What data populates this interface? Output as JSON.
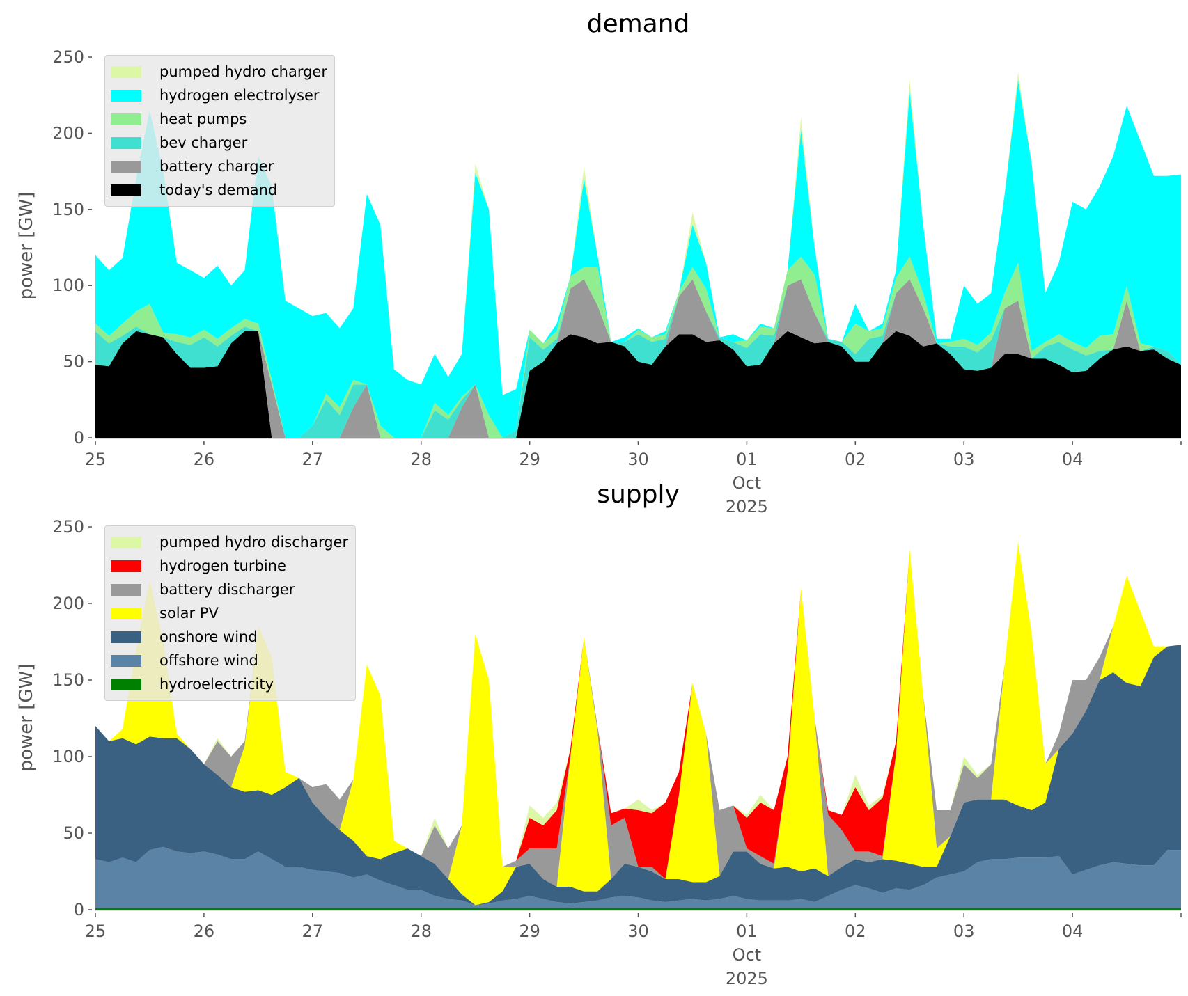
{
  "chart_data": [
    {
      "type": "area",
      "stacked": true,
      "title": "demand",
      "ylabel": "power [GW]",
      "xlabel": "",
      "ylim": [
        0,
        250
      ],
      "yticks": [
        0,
        50,
        100,
        150,
        200,
        250
      ],
      "x_start": "2025-09-25 00:00",
      "x_step_hours": 3,
      "xtick_labels": [
        "25",
        "26",
        "27",
        "28",
        "29",
        "30",
        "01",
        "02",
        "03",
        "04"
      ],
      "xtick_sublabel": {
        "tick": "01",
        "month": "Oct",
        "year": "2025"
      },
      "legend_position": "upper-left",
      "series": [
        {
          "name": "today's demand",
          "color": "#000000",
          "values": [
            48,
            47,
            62,
            70,
            68,
            66,
            55,
            46,
            46,
            47,
            62,
            70,
            70,
            0,
            0,
            0,
            0,
            0,
            0,
            0,
            0,
            0,
            0,
            0,
            0,
            0,
            0,
            0,
            0,
            0,
            0,
            0,
            44,
            50,
            62,
            68,
            66,
            62,
            63,
            60,
            50,
            48,
            60,
            68,
            68,
            63,
            64,
            58,
            47,
            48,
            62,
            70,
            66,
            62,
            63,
            60,
            50,
            50,
            62,
            70,
            67,
            60,
            62,
            55,
            45,
            44,
            46,
            55,
            55,
            52,
            52,
            48,
            43,
            44,
            52,
            58,
            60,
            57,
            58,
            52,
            48
          ]
        },
        {
          "name": "battery charger",
          "color": "#999999",
          "values": [
            0,
            0,
            0,
            0,
            0,
            0,
            0,
            0,
            0,
            0,
            0,
            0,
            0,
            35,
            0,
            0,
            0,
            0,
            0,
            20,
            35,
            0,
            0,
            0,
            0,
            0,
            0,
            20,
            35,
            0,
            0,
            0,
            0,
            0,
            0,
            30,
            38,
            25,
            0,
            0,
            0,
            0,
            0,
            25,
            36,
            20,
            0,
            0,
            0,
            0,
            0,
            30,
            38,
            20,
            0,
            0,
            0,
            0,
            0,
            25,
            37,
            25,
            0,
            0,
            0,
            0,
            0,
            30,
            35,
            0,
            0,
            0,
            0,
            0,
            0,
            0,
            30,
            0,
            0,
            0,
            0
          ]
        },
        {
          "name": "bev charger",
          "color": "#40e0d0",
          "values": [
            22,
            15,
            5,
            3,
            0,
            0,
            8,
            15,
            20,
            13,
            5,
            3,
            0,
            0,
            0,
            0,
            8,
            25,
            15,
            15,
            0,
            0,
            0,
            0,
            0,
            18,
            12,
            5,
            0,
            0,
            0,
            5,
            22,
            8,
            3,
            0,
            0,
            0,
            0,
            3,
            18,
            15,
            5,
            0,
            0,
            0,
            2,
            5,
            12,
            20,
            5,
            0,
            0,
            0,
            2,
            3,
            5,
            15,
            5,
            0,
            0,
            0,
            0,
            5,
            15,
            12,
            18,
            0,
            0,
            0,
            8,
            15,
            15,
            10,
            5,
            0,
            0,
            0,
            2,
            5,
            0
          ]
        },
        {
          "name": "heat pumps",
          "color": "#90ee90",
          "values": [
            5,
            5,
            8,
            10,
            20,
            3,
            5,
            5,
            5,
            5,
            5,
            5,
            5,
            3,
            0,
            0,
            0,
            4,
            5,
            3,
            0,
            8,
            0,
            0,
            0,
            5,
            3,
            2,
            0,
            15,
            0,
            0,
            5,
            4,
            5,
            8,
            8,
            25,
            0,
            0,
            3,
            3,
            3,
            3,
            8,
            15,
            0,
            0,
            5,
            5,
            5,
            10,
            15,
            25,
            0,
            0,
            20,
            5,
            5,
            10,
            15,
            10,
            0,
            3,
            5,
            5,
            5,
            10,
            25,
            5,
            3,
            5,
            5,
            5,
            10,
            10,
            10,
            5,
            0,
            0,
            0
          ]
        },
        {
          "name": "hydrogen electrolyser",
          "color": "#00ffff",
          "values": [
            45,
            43,
            43,
            87,
            127,
            106,
            47,
            44,
            34,
            48,
            28,
            32,
            110,
            127,
            90,
            85,
            72,
            53,
            52,
            47,
            125,
            132,
            45,
            38,
            35,
            32,
            25,
            28,
            139,
            135,
            28,
            27,
            0,
            0,
            5,
            0,
            58,
            8,
            0,
            3,
            1,
            0,
            2,
            0,
            28,
            17,
            0,
            5,
            0,
            2,
            0,
            0,
            83,
            18,
            0,
            0,
            13,
            0,
            3,
            5,
            108,
            45,
            3,
            2,
            35,
            27,
            26,
            65,
            120,
            123,
            32,
            47,
            92,
            91,
            98,
            117,
            118,
            133,
            112,
            115,
            125
          ]
        },
        {
          "name": "pumped hydro charger",
          "color": "#dcf7a6",
          "values": [
            0,
            0,
            0,
            0,
            0,
            0,
            0,
            0,
            0,
            0,
            0,
            0,
            0,
            0,
            0,
            0,
            0,
            0,
            0,
            0,
            0,
            0,
            0,
            0,
            0,
            0,
            0,
            0,
            6,
            0,
            0,
            0,
            0,
            0,
            0,
            0,
            8,
            0,
            0,
            0,
            0,
            0,
            0,
            0,
            8,
            0,
            0,
            0,
            0,
            0,
            0,
            0,
            8,
            0,
            0,
            0,
            0,
            0,
            0,
            0,
            8,
            0,
            0,
            0,
            0,
            0,
            0,
            0,
            5,
            0,
            0,
            0,
            0,
            0,
            0,
            0,
            0,
            0,
            0,
            0,
            0
          ]
        }
      ]
    },
    {
      "type": "area",
      "stacked": true,
      "title": "supply",
      "ylabel": "power [GW]",
      "xlabel": "",
      "ylim": [
        0,
        250
      ],
      "yticks": [
        0,
        50,
        100,
        150,
        200,
        250
      ],
      "x_start": "2025-09-25 00:00",
      "x_step_hours": 3,
      "xtick_labels": [
        "25",
        "26",
        "27",
        "28",
        "29",
        "30",
        "01",
        "02",
        "03",
        "04"
      ],
      "xtick_sublabel": {
        "tick": "01",
        "month": "Oct",
        "year": "2025"
      },
      "legend_position": "upper-left",
      "series": [
        {
          "name": "hydroelectricity",
          "color": "#008000",
          "values": [
            1,
            1,
            1,
            1,
            1,
            1,
            1,
            1,
            1,
            1,
            1,
            1,
            1,
            1,
            1,
            1,
            1,
            1,
            1,
            1,
            1,
            1,
            1,
            1,
            1,
            1,
            1,
            1,
            1,
            1,
            1,
            1,
            1,
            1,
            1,
            1,
            1,
            1,
            1,
            1,
            1,
            1,
            1,
            1,
            1,
            1,
            1,
            1,
            1,
            1,
            1,
            1,
            1,
            1,
            1,
            1,
            1,
            1,
            1,
            1,
            1,
            1,
            1,
            1,
            1,
            1,
            1,
            1,
            1,
            1,
            1,
            1,
            1,
            1,
            1,
            1,
            1,
            1,
            1,
            1,
            1
          ]
        },
        {
          "name": "offshore wind",
          "color": "#5b83a6",
          "values": [
            32,
            30,
            33,
            30,
            38,
            40,
            37,
            36,
            37,
            35,
            32,
            32,
            37,
            32,
            27,
            27,
            25,
            24,
            23,
            20,
            22,
            18,
            15,
            12,
            12,
            8,
            6,
            5,
            2,
            3,
            5,
            6,
            8,
            6,
            4,
            3,
            4,
            5,
            7,
            8,
            7,
            5,
            4,
            5,
            6,
            5,
            6,
            8,
            6,
            5,
            5,
            5,
            6,
            4,
            8,
            12,
            15,
            13,
            10,
            13,
            12,
            15,
            20,
            22,
            24,
            30,
            32,
            32,
            33,
            33,
            33,
            34,
            22,
            25,
            28,
            30,
            29,
            28,
            28,
            38,
            38
          ]
        },
        {
          "name": "onshore wind",
          "color": "#3b6182",
          "values": [
            87,
            79,
            78,
            77,
            74,
            71,
            74,
            68,
            57,
            52,
            47,
            44,
            40,
            42,
            52,
            58,
            44,
            35,
            28,
            24,
            12,
            14,
            21,
            27,
            22,
            21,
            13,
            4,
            0,
            1,
            6,
            21,
            21,
            13,
            10,
            11,
            7,
            6,
            12,
            21,
            20,
            19,
            15,
            14,
            11,
            12,
            15,
            29,
            31,
            24,
            21,
            22,
            18,
            22,
            13,
            15,
            17,
            17,
            22,
            18,
            17,
            12,
            7,
            25,
            45,
            41,
            39,
            39,
            34,
            31,
            36,
            70,
            92,
            104,
            121,
            124,
            118,
            117,
            136,
            133,
            134
          ]
        },
        {
          "name": "solar PV",
          "color": "#ffff00",
          "values": [
            0,
            0,
            6,
            62,
            102,
            63,
            3,
            0,
            0,
            0,
            0,
            30,
            107,
            90,
            10,
            0,
            0,
            0,
            0,
            40,
            125,
            107,
            8,
            0,
            0,
            0,
            0,
            45,
            177,
            145,
            16,
            0,
            0,
            0,
            0,
            85,
            166,
            105,
            0,
            0,
            0,
            0,
            0,
            55,
            130,
            97,
            0,
            0,
            0,
            0,
            0,
            62,
            185,
            98,
            0,
            0,
            0,
            0,
            0,
            70,
            205,
            112,
            12,
            0,
            0,
            0,
            0,
            88,
            172,
            115,
            25,
            0,
            0,
            0,
            0,
            30,
            70,
            49,
            7,
            0,
            0
          ]
        },
        {
          "name": "battery discharger",
          "color": "#999999",
          "values": [
            0,
            0,
            0,
            0,
            0,
            0,
            0,
            0,
            0,
            22,
            20,
            3,
            0,
            0,
            0,
            0,
            10,
            22,
            20,
            0,
            0,
            0,
            0,
            0,
            0,
            25,
            20,
            0,
            0,
            0,
            0,
            4,
            10,
            20,
            25,
            0,
            0,
            3,
            35,
            30,
            0,
            3,
            0,
            0,
            0,
            0,
            43,
            30,
            2,
            5,
            3,
            0,
            0,
            0,
            40,
            24,
            5,
            7,
            2,
            0,
            0,
            0,
            25,
            17,
            25,
            14,
            23,
            0,
            0,
            0,
            0,
            10,
            35,
            20,
            15,
            0,
            0,
            0,
            0,
            0,
            0
          ]
        },
        {
          "name": "hydrogen turbine",
          "color": "#ff0000",
          "values": [
            0,
            0,
            0,
            0,
            0,
            0,
            0,
            0,
            0,
            0,
            0,
            0,
            0,
            0,
            0,
            0,
            0,
            0,
            0,
            0,
            0,
            0,
            0,
            0,
            0,
            0,
            0,
            0,
            0,
            0,
            0,
            0,
            20,
            15,
            25,
            5,
            0,
            0,
            8,
            6,
            37,
            35,
            50,
            15,
            0,
            0,
            0,
            0,
            20,
            35,
            35,
            10,
            0,
            0,
            3,
            10,
            42,
            27,
            38,
            8,
            0,
            0,
            0,
            0,
            0,
            0,
            0,
            0,
            0,
            0,
            0,
            0,
            0,
            0,
            0,
            0,
            0,
            0,
            0,
            0,
            0
          ]
        },
        {
          "name": "pumped hydro discharger",
          "color": "#dcf7a6",
          "values": [
            0,
            0,
            0,
            0,
            0,
            0,
            0,
            0,
            0,
            2,
            0,
            0,
            0,
            0,
            0,
            0,
            0,
            0,
            0,
            0,
            0,
            0,
            0,
            0,
            0,
            5,
            0,
            0,
            0,
            0,
            0,
            0,
            8,
            5,
            5,
            0,
            0,
            0,
            0,
            0,
            7,
            2,
            0,
            0,
            0,
            0,
            0,
            0,
            2,
            5,
            0,
            0,
            0,
            0,
            0,
            0,
            8,
            3,
            2,
            0,
            0,
            0,
            0,
            0,
            5,
            2,
            0,
            0,
            0,
            0,
            0,
            0,
            0,
            0,
            0,
            0,
            0,
            0,
            0,
            0,
            0
          ]
        }
      ]
    }
  ]
}
